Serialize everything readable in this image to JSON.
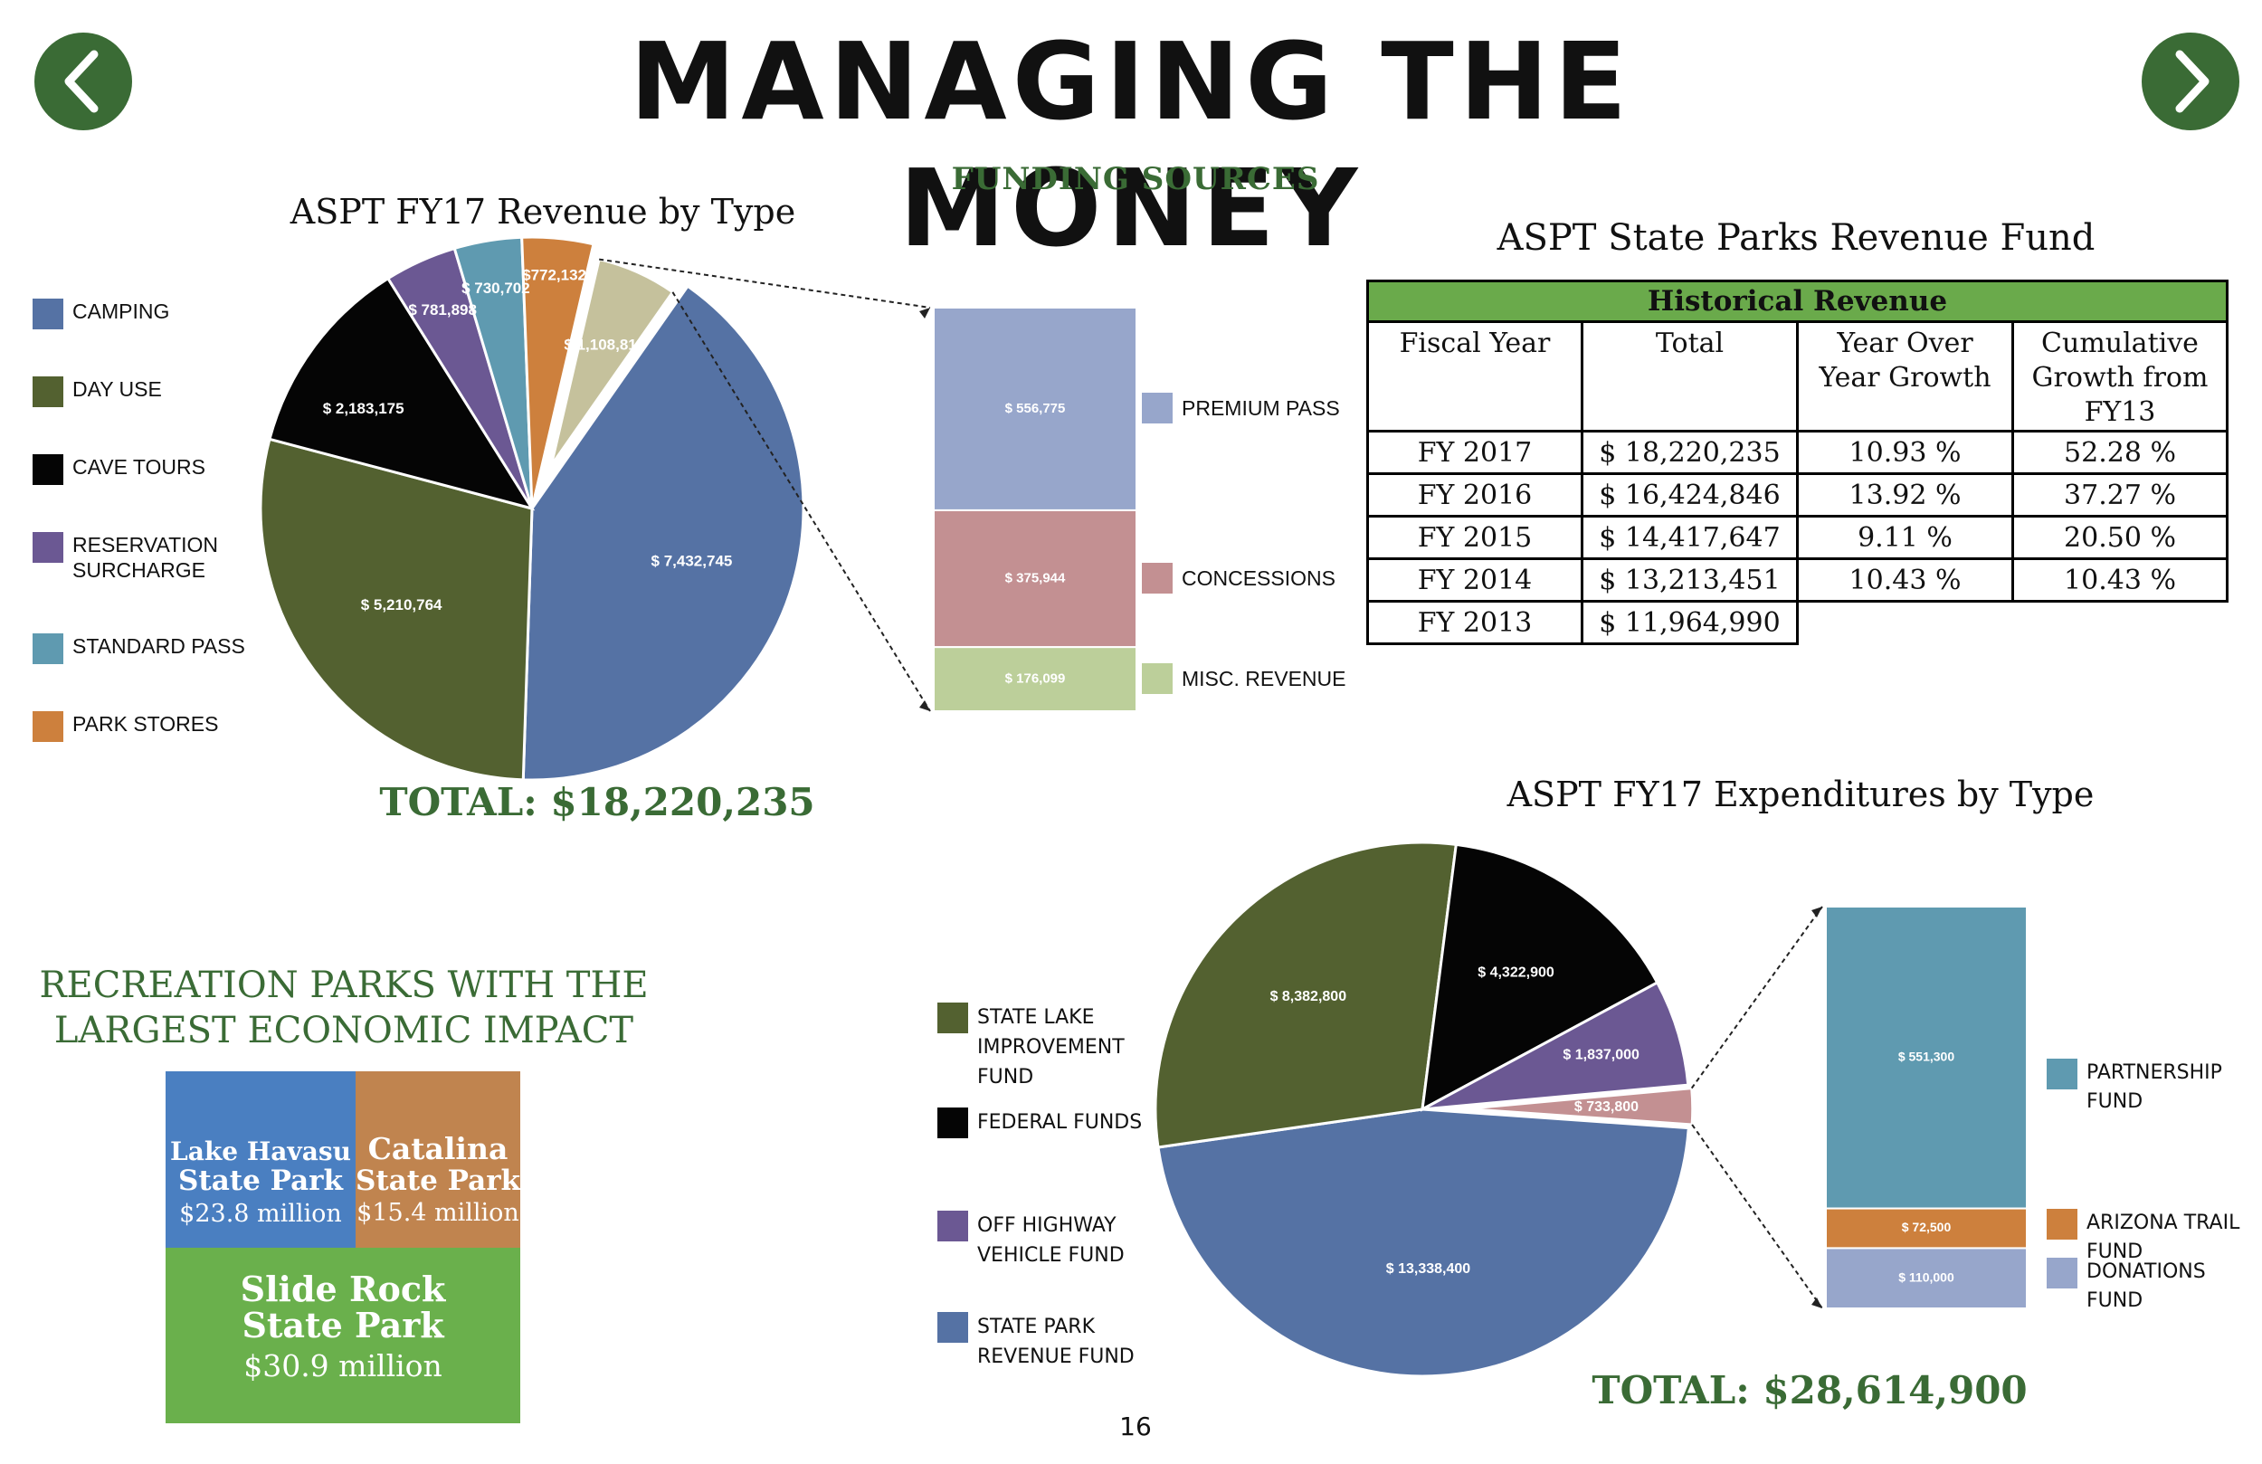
{
  "page": {
    "title": "MANAGING THE MONEY",
    "section_heading": "FUNDING SOURCES",
    "page_number": "16",
    "colors": {
      "accent_green": "#3a6b35",
      "title": "#111111",
      "table_banner": "#6aaa4b"
    }
  },
  "nav": {
    "prev_icon": "chevron-left-icon",
    "next_icon": "chevron-right-icon"
  },
  "chart_data": [
    {
      "type": "pie",
      "title": "ASPT FY17 Revenue by Type",
      "slices": [
        {
          "label": "CAMPING",
          "value": 7432745,
          "value_label": "$ 7,432,745",
          "color": "#5572a4"
        },
        {
          "label": "DAY USE",
          "value": 5210764,
          "value_label": "$  5,210,764",
          "color": "#536130"
        },
        {
          "label": "CAVE TOURS",
          "value": 2183175,
          "value_label": "$ 2,183,175",
          "color": "#050505"
        },
        {
          "label": "RESERVATION SURCHARGE",
          "value": 781898,
          "value_label": "$ 781,898",
          "color": "#6b5893"
        },
        {
          "label": "STANDARD PASS",
          "value": 730702,
          "value_label": "$ 730,702",
          "color": "#5f9ab0"
        },
        {
          "label": "PARK STORES",
          "value": 772132,
          "value_label": "$772,132",
          "color": "#cd803d"
        },
        {
          "label": "",
          "value": 1108819,
          "value_label": "$ 1,108,819",
          "color": "#c5c19c",
          "exploded": true
        }
      ],
      "breakdown": [
        {
          "label": "PREMIUM PASS",
          "value": 556775,
          "value_label": "$ 556,775",
          "color": "#97a6cb"
        },
        {
          "label": "CONCESSIONS",
          "value": 375944,
          "value_label": "$ 375,944",
          "color": "#c39092"
        },
        {
          "label": "MISC. REVENUE",
          "value": 176099,
          "value_label": "$ 176,099",
          "color": "#bccf9a"
        }
      ],
      "total": "TOTAL: $18,220,235"
    },
    {
      "type": "table",
      "title": "ASPT State Parks Revenue Fund",
      "banner": "Historical Revenue",
      "columns": [
        "Fiscal Year",
        "Total",
        "Year Over Year Growth",
        "Cumulative Growth from FY13"
      ],
      "rows": [
        [
          "FY 2017",
          "$ 18,220,235",
          "10.93 %",
          "52.28 %"
        ],
        [
          "FY 2016",
          "$ 16,424,846",
          "13.92 %",
          "37.27 %"
        ],
        [
          "FY 2015",
          "$ 14,417,647",
          "9.11 %",
          "20.50 %"
        ],
        [
          "FY 2014",
          "$ 13,213,451",
          "10.43 %",
          "10.43 %"
        ],
        [
          "FY 2013",
          "$ 11,964,990",
          "",
          ""
        ]
      ]
    },
    {
      "type": "pie",
      "title": "ASPT FY17 Expenditures by Type",
      "slices": [
        {
          "label": "STATE PARK REVENUE FUND",
          "value": 13338400,
          "value_label": "$ 13,338,400",
          "color": "#5572a4"
        },
        {
          "label": "STATE LAKE IMPROVEMENT FUND",
          "value": 8382800,
          "value_label": "$ 8,382,800",
          "color": "#536130"
        },
        {
          "label": "FEDERAL FUNDS",
          "value": 4322900,
          "value_label": "$ 4,322,900",
          "color": "#050505"
        },
        {
          "label": "OFF HIGHWAY VEHICLE FUND",
          "value": 1837000,
          "value_label": "$ 1,837,000",
          "color": "#6b5893"
        },
        {
          "label": "",
          "value": 733800,
          "value_label": "$ 733,800",
          "color": "#c39092",
          "exploded": true
        }
      ],
      "breakdown": [
        {
          "label": "PARTNERSHIP FUND",
          "value": 551300,
          "value_label": "$ 551,300",
          "color": "#5f9ab0"
        },
        {
          "label": "ARIZONA TRAIL FUND",
          "value": 72500,
          "value_label": "$ 72,500",
          "color": "#cd803d"
        },
        {
          "label": "DONATIONS FUND",
          "value": 110000,
          "value_label": "$ 110,000",
          "color": "#97a6cb"
        }
      ],
      "legend_order": [
        "STATE LAKE IMPROVEMENT FUND",
        "FEDERAL FUNDS",
        "OFF HIGHWAY VEHICLE FUND",
        "STATE PARK REVENUE FUND"
      ],
      "total": "TOTAL: $28,614,900"
    }
  ],
  "impact": {
    "heading_line1": "RECREATION PARKS WITH THE",
    "heading_line2": "LARGEST ECONOMIC IMPACT",
    "parks": [
      {
        "name_line1": "Lake Havasu",
        "name_line2": "State Park",
        "amount": "$23.8 million",
        "color": "#4a7fc1"
      },
      {
        "name_line1": "Catalina",
        "name_line2": "State Park",
        "amount": "$15.4 million",
        "color": "#c0844f"
      },
      {
        "name_line1": "Slide Rock",
        "name_line2": "State Park",
        "amount": "$30.9 million",
        "color": "#6ab04c"
      }
    ]
  }
}
